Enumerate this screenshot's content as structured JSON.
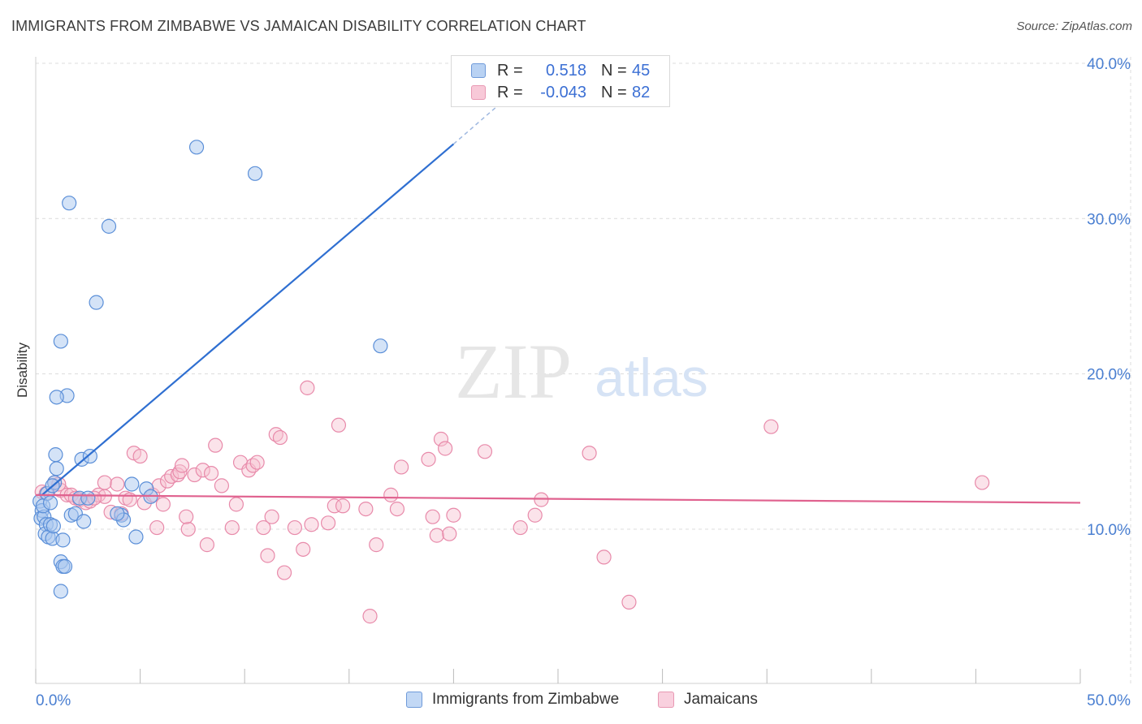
{
  "title": "IMMIGRANTS FROM ZIMBABWE VS JAMAICAN DISABILITY CORRELATION CHART",
  "source": "Source: ZipAtlas.com",
  "watermark": {
    "zip": "ZIP",
    "atlas": "atlas"
  },
  "legend_top": {
    "rows": [
      {
        "r_label": "R =",
        "r_value": "0.518",
        "n_label": "N =",
        "n_value": "45"
      },
      {
        "r_label": "R =",
        "r_value": "-0.043",
        "n_label": "N =",
        "n_value": "82"
      }
    ]
  },
  "legend_bottom": {
    "items": [
      "Immigrants from Zimbabwe",
      "Jamaicans"
    ]
  },
  "colors": {
    "blue_fill": "#aac8f0",
    "blue_stroke": "#5b8fd8",
    "blue_line": "#2f6fd1",
    "pink_fill": "#f6c0d1",
    "pink_stroke": "#e88aaa",
    "pink_line": "#e0628f",
    "tick_label": "#4a7fd1",
    "grid": "#dcdcdc"
  },
  "chart_data": {
    "type": "scatter",
    "title": "IMMIGRANTS FROM ZIMBABWE VS JAMAICAN DISABILITY CORRELATION CHART",
    "xlabel": "",
    "ylabel": "Disability",
    "xlim": [
      0,
      50
    ],
    "ylim": [
      0,
      42
    ],
    "x_tick_labels": [
      "0.0%",
      "50.0%"
    ],
    "y_ticks": [
      10,
      20,
      30,
      40
    ],
    "y_tick_labels": [
      "10.0%",
      "20.0%",
      "30.0%",
      "40.0%"
    ],
    "grid": true,
    "series": [
      {
        "name": "Immigrants from Zimbabwe",
        "color": "#5b8fd8",
        "trend": {
          "x0": 0.3,
          "y0": 12.2,
          "x1": 20.0,
          "y1": 34.8,
          "dash_to_x": 23.0,
          "dash_to_y": 38.3
        },
        "points": [
          [
            0.2,
            11.8
          ],
          [
            0.3,
            11.2
          ],
          [
            0.25,
            10.7
          ],
          [
            0.4,
            10.8
          ],
          [
            0.35,
            11.5
          ],
          [
            0.5,
            10.3
          ],
          [
            0.45,
            9.7
          ],
          [
            0.6,
            9.5
          ],
          [
            0.7,
            10.3
          ],
          [
            0.8,
            9.4
          ],
          [
            0.55,
            12.3
          ],
          [
            0.7,
            11.7
          ],
          [
            0.9,
            13.0
          ],
          [
            0.85,
            10.2
          ],
          [
            1.0,
            13.9
          ],
          [
            0.95,
            14.8
          ],
          [
            0.8,
            12.8
          ],
          [
            1.3,
            9.3
          ],
          [
            1.2,
            7.9
          ],
          [
            1.3,
            7.6
          ],
          [
            1.4,
            7.6
          ],
          [
            1.2,
            6.0
          ],
          [
            1.7,
            10.9
          ],
          [
            1.9,
            11.0
          ],
          [
            2.3,
            10.5
          ],
          [
            2.1,
            12.0
          ],
          [
            2.5,
            12.0
          ],
          [
            2.2,
            14.5
          ],
          [
            2.6,
            14.7
          ],
          [
            1.5,
            18.6
          ],
          [
            1.0,
            18.5
          ],
          [
            1.2,
            22.1
          ],
          [
            2.9,
            24.6
          ],
          [
            1.6,
            31.0
          ],
          [
            3.5,
            29.5
          ],
          [
            4.1,
            10.9
          ],
          [
            4.2,
            10.6
          ],
          [
            4.6,
            12.9
          ],
          [
            5.3,
            12.6
          ],
          [
            4.8,
            9.5
          ],
          [
            7.7,
            34.6
          ],
          [
            10.5,
            32.9
          ],
          [
            16.5,
            21.8
          ],
          [
            5.5,
            12.1
          ],
          [
            3.9,
            11.0
          ]
        ]
      },
      {
        "name": "Jamaicans",
        "color": "#e88aaa",
        "trend": {
          "x0": 0,
          "y0": 12.2,
          "x1": 50,
          "y1": 11.7
        },
        "points": [
          [
            0.3,
            12.4
          ],
          [
            0.5,
            12.3
          ],
          [
            0.9,
            13.0
          ],
          [
            1.2,
            12.5
          ],
          [
            1.5,
            12.2
          ],
          [
            1.7,
            12.2
          ],
          [
            1.9,
            12.0
          ],
          [
            2.1,
            11.9
          ],
          [
            2.4,
            11.7
          ],
          [
            2.6,
            11.8
          ],
          [
            3.0,
            12.2
          ],
          [
            3.3,
            12.1
          ],
          [
            3.3,
            13.0
          ],
          [
            3.6,
            11.1
          ],
          [
            3.9,
            12.9
          ],
          [
            4.1,
            11.0
          ],
          [
            4.3,
            12.0
          ],
          [
            4.7,
            14.9
          ],
          [
            5.0,
            14.7
          ],
          [
            5.2,
            11.7
          ],
          [
            5.6,
            12.2
          ],
          [
            5.8,
            10.1
          ],
          [
            5.9,
            12.8
          ],
          [
            6.1,
            11.6
          ],
          [
            6.3,
            13.1
          ],
          [
            6.5,
            13.4
          ],
          [
            6.8,
            13.5
          ],
          [
            6.9,
            13.7
          ],
          [
            7.0,
            14.1
          ],
          [
            7.3,
            10.0
          ],
          [
            7.2,
            10.8
          ],
          [
            7.6,
            13.5
          ],
          [
            8.0,
            13.8
          ],
          [
            8.2,
            9.0
          ],
          [
            8.4,
            13.6
          ],
          [
            8.6,
            15.4
          ],
          [
            8.9,
            12.8
          ],
          [
            9.4,
            10.1
          ],
          [
            9.6,
            11.6
          ],
          [
            9.8,
            14.3
          ],
          [
            10.2,
            13.8
          ],
          [
            10.4,
            14.1
          ],
          [
            10.6,
            14.3
          ],
          [
            10.9,
            10.1
          ],
          [
            11.1,
            8.3
          ],
          [
            11.3,
            10.8
          ],
          [
            11.5,
            16.1
          ],
          [
            11.7,
            15.9
          ],
          [
            11.9,
            7.2
          ],
          [
            12.4,
            10.1
          ],
          [
            12.8,
            8.7
          ],
          [
            13.0,
            19.1
          ],
          [
            13.2,
            10.3
          ],
          [
            14.0,
            10.4
          ],
          [
            14.3,
            11.5
          ],
          [
            14.5,
            16.7
          ],
          [
            14.7,
            11.5
          ],
          [
            15.8,
            11.3
          ],
          [
            16.0,
            4.4
          ],
          [
            16.3,
            9.0
          ],
          [
            17.0,
            12.2
          ],
          [
            17.3,
            11.3
          ],
          [
            17.5,
            14.0
          ],
          [
            18.8,
            14.5
          ],
          [
            19.0,
            10.8
          ],
          [
            19.2,
            9.6
          ],
          [
            19.4,
            15.8
          ],
          [
            19.6,
            15.2
          ],
          [
            19.8,
            9.7
          ],
          [
            20.0,
            10.9
          ],
          [
            21.5,
            15.0
          ],
          [
            23.2,
            10.1
          ],
          [
            23.9,
            10.9
          ],
          [
            24.2,
            11.9
          ],
          [
            26.5,
            14.9
          ],
          [
            27.2,
            8.2
          ],
          [
            28.4,
            5.3
          ],
          [
            35.2,
            16.6
          ],
          [
            45.3,
            13.0
          ],
          [
            1.1,
            12.9
          ],
          [
            2.8,
            12.0
          ],
          [
            4.5,
            11.9
          ]
        ]
      }
    ]
  }
}
